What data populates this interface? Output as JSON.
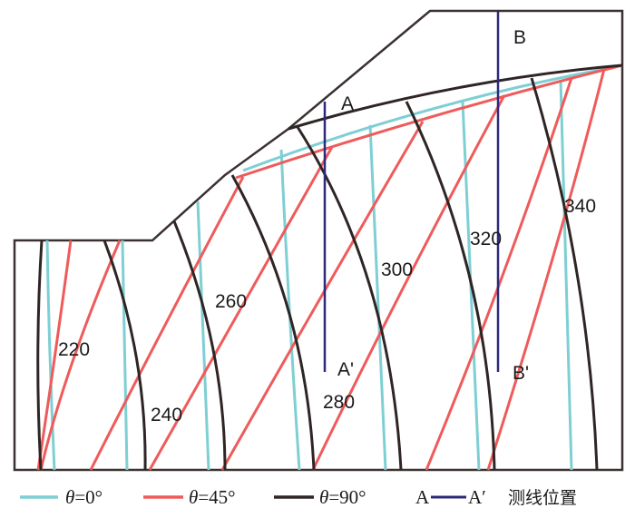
{
  "colors": {
    "theta0": "#7ecfd4",
    "theta45": "#ef5b5b",
    "theta90": "#2f2525",
    "survey_line": "#2d2a7a",
    "outline": "#3a3030"
  },
  "contour_labels": [
    "220",
    "240",
    "260",
    "280",
    "300",
    "320",
    "340"
  ],
  "survey_labels": {
    "a_top": "A",
    "a_bottom": "A'",
    "b_top": "B",
    "b_bottom": "B'"
  },
  "legend": {
    "items": [
      {
        "symbol": "θ",
        "text": "=0°"
      },
      {
        "symbol": "θ",
        "text": "=45°"
      },
      {
        "symbol": "θ",
        "text": "=90°"
      }
    ],
    "survey": {
      "start": "A",
      "end": "A′",
      "text": "测线位置"
    }
  }
}
